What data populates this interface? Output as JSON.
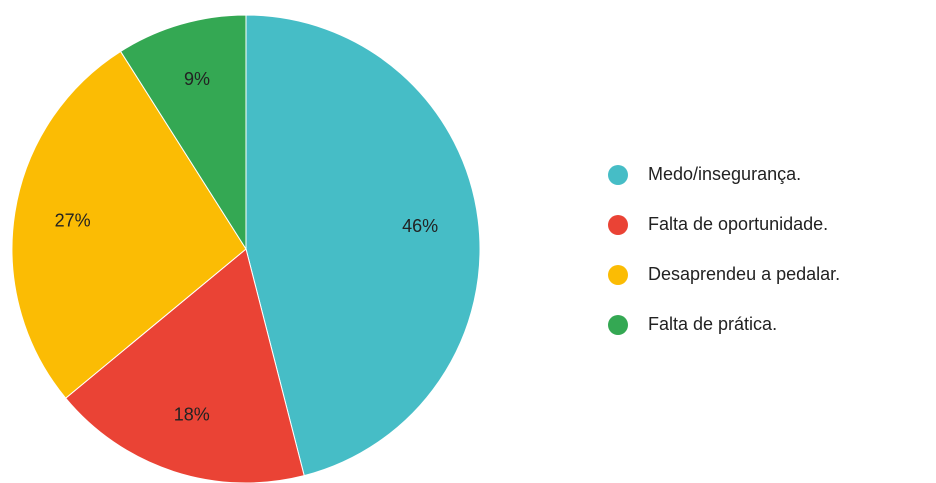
{
  "chart_data": {
    "type": "pie",
    "categories": [
      "Medo/insegurança.",
      "Falta de oportunidade.",
      "Desaprendeu a pedalar.",
      "Falta de prática."
    ],
    "values": [
      46,
      18,
      27,
      9
    ],
    "value_labels": [
      "46%",
      "18%",
      "27%",
      "9%"
    ],
    "colors": [
      "#46bdc6",
      "#ea4335",
      "#fbbc04",
      "#34a853"
    ],
    "legend": "right"
  }
}
